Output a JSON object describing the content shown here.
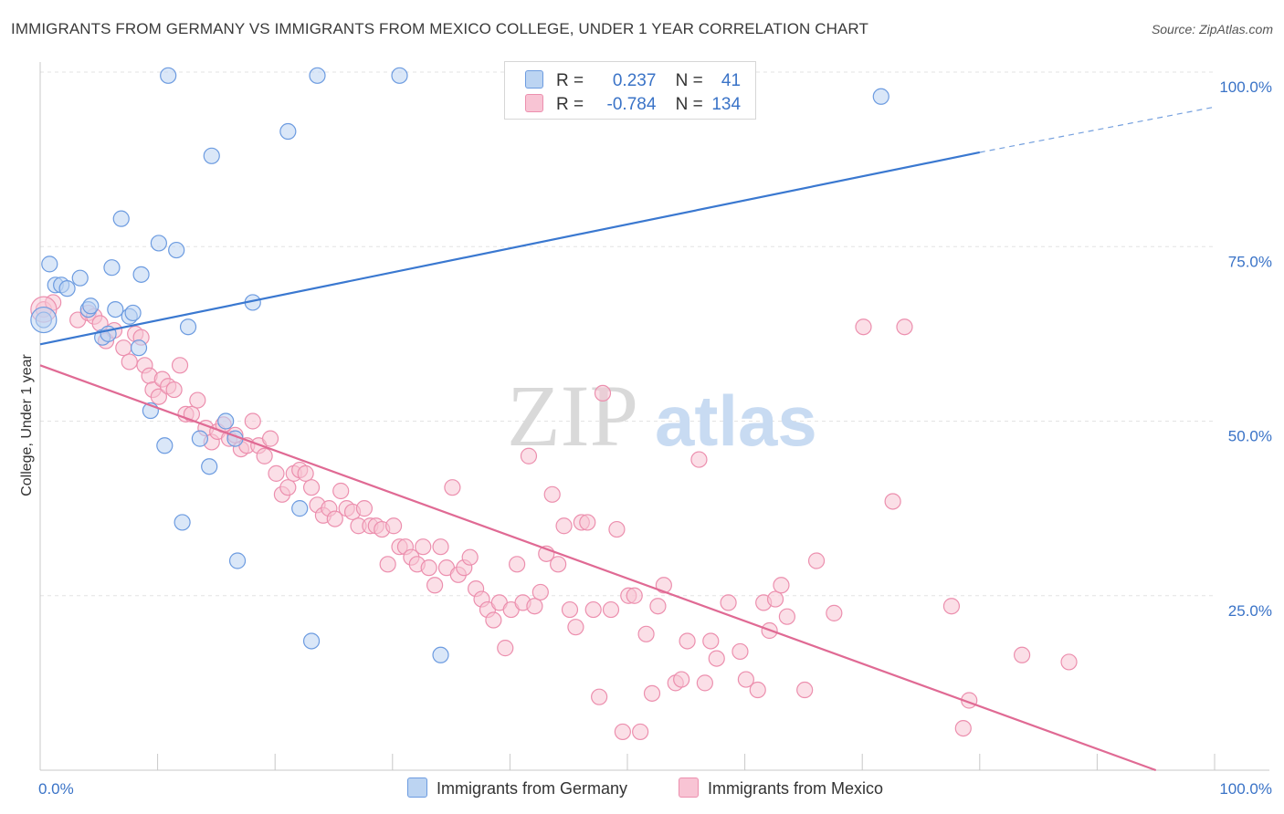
{
  "title": "IMMIGRANTS FROM GERMANY VS IMMIGRANTS FROM MEXICO COLLEGE, UNDER 1 YEAR CORRELATION CHART",
  "source": "Source: ZipAtlas.com",
  "watermark": {
    "zip": "ZIP",
    "atlas": "atlas"
  },
  "legend": {
    "r_label": "R =",
    "n_label": "N =",
    "germany": {
      "r": "0.237",
      "n": "41"
    },
    "mexico": {
      "r": "-0.784",
      "n": "134"
    }
  },
  "bottom_legend": {
    "germany": "Immigrants from Germany",
    "mexico": "Immigrants from Mexico"
  },
  "colors": {
    "germany_fill": "#bcd4f2",
    "germany_stroke": "#6c9be0",
    "germany_line": "#3a78d0",
    "mexico_fill": "#f8c4d4",
    "mexico_stroke": "#ec8fae",
    "mexico_line": "#e06a94",
    "axis_label": "#3a73c7"
  },
  "chart_data": {
    "type": "scatter",
    "title": "IMMIGRANTS FROM GERMANY VS IMMIGRANTS FROM MEXICO COLLEGE, UNDER 1 YEAR CORRELATION CHART",
    "xlabel": "",
    "ylabel": "College, Under 1 year",
    "xlim": [
      0,
      100
    ],
    "ylim": [
      0,
      100
    ],
    "x_tick_labels": [
      "0.0%",
      "100.0%"
    ],
    "y_tick_labels": [
      "25.0%",
      "50.0%",
      "75.0%",
      "100.0%"
    ],
    "y_ticks": [
      25,
      50,
      75,
      100
    ],
    "grid": true,
    "legend_position": "top-center",
    "series": [
      {
        "name": "Immigrants from Germany",
        "trend": {
          "x0": 0,
          "y0": 61,
          "x1": 80,
          "y1": 88.5,
          "dashed_to_x": 100,
          "dashed_to_y": 95
        },
        "points": [
          [
            0.3,
            64.5
          ],
          [
            0.8,
            72.5
          ],
          [
            1.3,
            69.5
          ],
          [
            1.8,
            69.5
          ],
          [
            2.3,
            69
          ],
          [
            3.4,
            70.5
          ],
          [
            4.1,
            66
          ],
          [
            4.3,
            66.5
          ],
          [
            5.3,
            62
          ],
          [
            5.8,
            62.5
          ],
          [
            6.1,
            72
          ],
          [
            6.4,
            66
          ],
          [
            6.9,
            79
          ],
          [
            7.6,
            65
          ],
          [
            7.9,
            65.5
          ],
          [
            8.4,
            60.5
          ],
          [
            8.6,
            71
          ],
          [
            9.4,
            51.5
          ],
          [
            10.1,
            75.5
          ],
          [
            10.6,
            46.5
          ],
          [
            10.9,
            99.5
          ],
          [
            11.6,
            74.5
          ],
          [
            12.1,
            35.5
          ],
          [
            12.6,
            63.5
          ],
          [
            13.6,
            47.5
          ],
          [
            14.4,
            43.5
          ],
          [
            14.6,
            88
          ],
          [
            15.8,
            50
          ],
          [
            16.6,
            47.5
          ],
          [
            16.8,
            30
          ],
          [
            18.1,
            67
          ],
          [
            21.1,
            91.5
          ],
          [
            22.1,
            37.5
          ],
          [
            23.1,
            18.5
          ],
          [
            23.6,
            99.5
          ],
          [
            30.6,
            99.5
          ],
          [
            34.1,
            16.5
          ],
          [
            71.6,
            96.5
          ]
        ]
      },
      {
        "name": "Immigrants from Mexico",
        "trend": {
          "x0": 0,
          "y0": 58,
          "x1": 95,
          "y1": 0
        },
        "points": [
          [
            0.3,
            66
          ],
          [
            1.1,
            67
          ],
          [
            3.2,
            64.5
          ],
          [
            4.1,
            65.5
          ],
          [
            4.6,
            65
          ],
          [
            5.1,
            64
          ],
          [
            5.6,
            61.5
          ],
          [
            6.3,
            63
          ],
          [
            7.1,
            60.5
          ],
          [
            7.6,
            58.5
          ],
          [
            8.1,
            62.5
          ],
          [
            8.6,
            62
          ],
          [
            8.9,
            58
          ],
          [
            9.3,
            56.5
          ],
          [
            9.6,
            54.5
          ],
          [
            10.1,
            53.5
          ],
          [
            10.4,
            56
          ],
          [
            10.9,
            55
          ],
          [
            11.4,
            54.5
          ],
          [
            11.9,
            58
          ],
          [
            12.4,
            51
          ],
          [
            12.9,
            51
          ],
          [
            13.4,
            53
          ],
          [
            14.1,
            49
          ],
          [
            14.6,
            47
          ],
          [
            15.1,
            48.5
          ],
          [
            15.6,
            49.5
          ],
          [
            16.1,
            47.5
          ],
          [
            16.6,
            48
          ],
          [
            17.1,
            46
          ],
          [
            17.6,
            46.5
          ],
          [
            18.1,
            50
          ],
          [
            18.6,
            46.5
          ],
          [
            19.1,
            45
          ],
          [
            19.6,
            47.5
          ],
          [
            20.1,
            42.5
          ],
          [
            20.6,
            39.5
          ],
          [
            21.1,
            40.5
          ],
          [
            21.6,
            42.5
          ],
          [
            22.1,
            43
          ],
          [
            22.6,
            42.5
          ],
          [
            23.1,
            40.5
          ],
          [
            23.6,
            38
          ],
          [
            24.1,
            36.5
          ],
          [
            24.6,
            37.5
          ],
          [
            25.1,
            36
          ],
          [
            25.6,
            40
          ],
          [
            26.1,
            37.5
          ],
          [
            26.6,
            37
          ],
          [
            27.1,
            35
          ],
          [
            27.6,
            37.5
          ],
          [
            28.1,
            35
          ],
          [
            28.6,
            35
          ],
          [
            29.1,
            34.5
          ],
          [
            29.6,
            29.5
          ],
          [
            30.1,
            35
          ],
          [
            30.6,
            32
          ],
          [
            31.1,
            32
          ],
          [
            31.6,
            30.5
          ],
          [
            32.1,
            29.5
          ],
          [
            32.6,
            32
          ],
          [
            33.1,
            29
          ],
          [
            33.6,
            26.5
          ],
          [
            34.1,
            32
          ],
          [
            34.6,
            29
          ],
          [
            35.1,
            40.5
          ],
          [
            35.6,
            28
          ],
          [
            36.1,
            29
          ],
          [
            36.6,
            30.5
          ],
          [
            37.1,
            26
          ],
          [
            37.6,
            24.5
          ],
          [
            38.1,
            23
          ],
          [
            38.6,
            21.5
          ],
          [
            39.1,
            24
          ],
          [
            39.6,
            17.5
          ],
          [
            40.1,
            23
          ],
          [
            40.6,
            29.5
          ],
          [
            41.1,
            24
          ],
          [
            41.6,
            45
          ],
          [
            42.1,
            23.5
          ],
          [
            42.6,
            25.5
          ],
          [
            43.1,
            31
          ],
          [
            43.6,
            39.5
          ],
          [
            44.1,
            29.5
          ],
          [
            44.6,
            35
          ],
          [
            45.1,
            23
          ],
          [
            45.6,
            20.5
          ],
          [
            46.1,
            35.5
          ],
          [
            46.6,
            35.5
          ],
          [
            47.1,
            23
          ],
          [
            47.6,
            10.5
          ],
          [
            47.9,
            54
          ],
          [
            48.6,
            23
          ],
          [
            49.1,
            34.5
          ],
          [
            49.6,
            5.5
          ],
          [
            50.1,
            25
          ],
          [
            50.6,
            25
          ],
          [
            51.1,
            5.5
          ],
          [
            51.6,
            19.5
          ],
          [
            52.1,
            11
          ],
          [
            52.6,
            23.5
          ],
          [
            53.1,
            26.5
          ],
          [
            54.1,
            12.5
          ],
          [
            54.6,
            13
          ],
          [
            55.1,
            18.5
          ],
          [
            56.1,
            44.5
          ],
          [
            56.6,
            12.5
          ],
          [
            57.1,
            18.5
          ],
          [
            57.6,
            16
          ],
          [
            58.6,
            24
          ],
          [
            59.6,
            17
          ],
          [
            60.1,
            13
          ],
          [
            61.1,
            11.5
          ],
          [
            61.6,
            24
          ],
          [
            62.1,
            20
          ],
          [
            62.6,
            24.5
          ],
          [
            63.1,
            26.5
          ],
          [
            63.6,
            22
          ],
          [
            65.1,
            11.5
          ],
          [
            66.1,
            30
          ],
          [
            67.6,
            22.5
          ],
          [
            70.1,
            63.5
          ],
          [
            72.6,
            38.5
          ],
          [
            73.6,
            63.5
          ],
          [
            77.6,
            23.5
          ],
          [
            78.6,
            6
          ],
          [
            79.1,
            10
          ],
          [
            83.6,
            16.5
          ],
          [
            87.6,
            15.5
          ]
        ]
      }
    ]
  }
}
